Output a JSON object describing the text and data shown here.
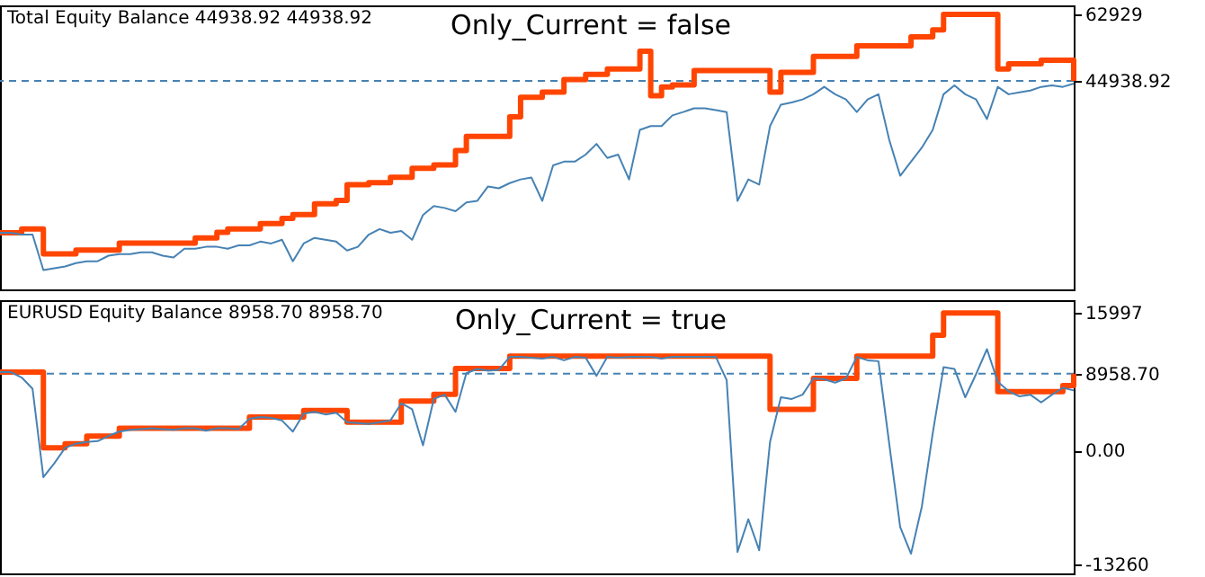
{
  "chart_data": [
    {
      "type": "line",
      "title": "Only_Current = false",
      "annotations": [
        "Total Equity Balance 44938.92 44938.92"
      ],
      "categories": [
        null,
        null,
        null,
        null,
        null,
        null,
        null,
        null,
        null,
        null,
        null,
        null,
        null,
        null,
        null,
        null,
        null,
        null,
        null,
        null,
        null,
        null,
        null,
        null,
        null,
        null,
        null,
        null,
        null,
        null,
        null,
        null,
        null,
        null,
        null,
        null,
        null,
        null,
        null,
        null,
        null,
        null,
        null,
        null,
        null,
        null,
        null,
        null,
        null,
        null,
        null,
        null,
        null,
        null,
        null,
        null,
        null,
        null,
        null,
        null,
        null,
        null,
        null,
        null,
        null,
        null,
        null,
        null,
        null,
        null,
        null,
        null,
        null,
        null,
        null,
        null,
        null,
        null,
        null,
        null,
        null,
        null,
        null,
        null,
        null,
        null,
        null,
        null,
        null,
        null,
        null,
        null,
        null,
        null,
        null,
        null,
        null,
        null,
        null,
        null
      ],
      "series": [
        {
          "type": "step",
          "color": "#ff4500",
          "values": [
            3900,
            3900,
            4900,
            4900,
            -1800,
            -1800,
            -1800,
            -800,
            -800,
            -800,
            -800,
            1100,
            1100,
            1100,
            1100,
            1100,
            1100,
            1100,
            2500,
            2500,
            4000,
            4900,
            4900,
            4900,
            6400,
            6400,
            7800,
            8800,
            8800,
            11700,
            11700,
            12600,
            16900,
            16900,
            17400,
            17400,
            18900,
            18900,
            21300,
            21300,
            22200,
            22200,
            26100,
            29900,
            29900,
            29900,
            29900,
            35200,
            40500,
            40500,
            41900,
            41900,
            45300,
            45300,
            46700,
            46700,
            48100,
            48100,
            48100,
            52900,
            40900,
            43300,
            43800,
            43800,
            47700,
            47700,
            47700,
            47700,
            47700,
            47700,
            47700,
            41900,
            47200,
            47200,
            47200,
            51500,
            51500,
            51500,
            51500,
            54400,
            54400,
            54400,
            54400,
            54400,
            56800,
            56800,
            58700,
            62900,
            62900,
            62900,
            62900,
            62900,
            48100,
            49500,
            49500,
            49500,
            50500,
            50500,
            50500,
            44938.92
          ]
        },
        {
          "type": "line",
          "color": "#4682b4",
          "values": [
            3900,
            3900,
            3400,
            3400,
            -6200,
            -5700,
            -5200,
            -4300,
            -3800,
            -3800,
            -2300,
            -1900,
            -1900,
            -1400,
            -1400,
            -2300,
            -2800,
            -400,
            -400,
            100,
            100,
            -400,
            500,
            500,
            1500,
            1000,
            2000,
            -3800,
            1000,
            2500,
            2000,
            1500,
            -900,
            100,
            3400,
            4900,
            3900,
            4400,
            2000,
            8700,
            11100,
            10600,
            9700,
            12100,
            12500,
            16400,
            15900,
            17300,
            18300,
            18800,
            12500,
            22100,
            23100,
            23100,
            25000,
            27900,
            24100,
            25000,
            18300,
            31700,
            32700,
            32700,
            35600,
            36500,
            37500,
            37500,
            37000,
            36500,
            12500,
            18300,
            16900,
            32700,
            38500,
            39100,
            39900,
            41300,
            43300,
            41300,
            39900,
            36500,
            39900,
            41300,
            28900,
            19300,
            23100,
            26900,
            31700,
            41300,
            43700,
            41300,
            39900,
            34600,
            43300,
            41300,
            41800,
            42300,
            43300,
            43700,
            43300,
            44200
          ]
        }
      ],
      "ylim": [
        -11400,
        65300
      ],
      "yticks": [
        62929,
        {
          "value": 44938.92,
          "label": "44938.92"
        }
      ],
      "tick_labels": "y",
      "ref_lines": [
        {
          "axis": "y",
          "value": 44938.92,
          "color": "#4682b4",
          "line_style": "dashed"
        }
      ]
    },
    {
      "type": "line",
      "title": "Only_Current = true",
      "annotations": [
        "EURUSD Equity Balance 8958.70 8958.70"
      ],
      "categories": [
        null,
        null,
        null,
        null,
        null,
        null,
        null,
        null,
        null,
        null,
        null,
        null,
        null,
        null,
        null,
        null,
        null,
        null,
        null,
        null,
        null,
        null,
        null,
        null,
        null,
        null,
        null,
        null,
        null,
        null,
        null,
        null,
        null,
        null,
        null,
        null,
        null,
        null,
        null,
        null,
        null,
        null,
        null,
        null,
        null,
        null,
        null,
        null,
        null,
        null,
        null,
        null,
        null,
        null,
        null,
        null,
        null,
        null,
        null,
        null,
        null,
        null,
        null,
        null,
        null,
        null,
        null,
        null,
        null,
        null,
        null,
        null,
        null,
        null,
        null,
        null,
        null,
        null,
        null,
        null,
        null,
        null,
        null,
        null,
        null,
        null,
        null,
        null,
        null,
        null,
        null,
        null,
        null,
        null,
        null,
        null,
        null,
        null,
        null,
        null
      ],
      "series": [
        {
          "type": "step",
          "color": "#ff4500",
          "values": [
            9130,
            9130,
            9130,
            9130,
            320,
            320,
            800,
            800,
            1690,
            1690,
            1690,
            2600,
            2600,
            2600,
            2600,
            2600,
            2600,
            2600,
            2600,
            2600,
            2600,
            2600,
            2600,
            3900,
            3900,
            3900,
            3900,
            3900,
            4660,
            4660,
            4660,
            4660,
            3310,
            3310,
            3310,
            3310,
            3310,
            5760,
            5760,
            5760,
            6530,
            6530,
            9550,
            9550,
            9550,
            9550,
            9550,
            10990,
            10990,
            10990,
            10990,
            10990,
            10990,
            10990,
            10990,
            10990,
            10990,
            10990,
            10990,
            10990,
            10990,
            10990,
            10990,
            10990,
            10990,
            10990,
            10990,
            10990,
            10990,
            10990,
            10990,
            4790,
            4790,
            4790,
            4790,
            8390,
            8390,
            8390,
            8390,
            10990,
            10990,
            10990,
            10990,
            10990,
            10990,
            10990,
            13410,
            15997,
            15997,
            15997,
            15997,
            15997,
            6860,
            6860,
            6860,
            6860,
            6860,
            6860,
            7550,
            8958.7
          ]
        },
        {
          "type": "line",
          "color": "#4682b4",
          "values": [
            9130,
            9130,
            8500,
            7200,
            -3100,
            -1500,
            300,
            800,
            1000,
            1100,
            1700,
            2200,
            2400,
            2500,
            2600,
            2500,
            2400,
            2600,
            2600,
            2300,
            2600,
            2600,
            2500,
            3700,
            3900,
            3800,
            3500,
            2200,
            4300,
            4500,
            4200,
            4400,
            3300,
            3200,
            3100,
            3300,
            3500,
            5500,
            4800,
            600,
            6000,
            6500,
            4500,
            9000,
            9500,
            9300,
            9400,
            10900,
            10900,
            10800,
            10700,
            10900,
            10500,
            10900,
            10800,
            8700,
            10900,
            10800,
            10900,
            10900,
            10900,
            10700,
            10900,
            10900,
            10900,
            10900,
            10900,
            8200,
            -11800,
            -8000,
            -11600,
            1000,
            6200,
            6000,
            6500,
            8400,
            8300,
            7900,
            8400,
            10900,
            10500,
            10400,
            700,
            -8900,
            -12000,
            -6500,
            2000,
            9700,
            9500,
            6200,
            8900,
            11800,
            8000,
            6900,
            6300,
            6500,
            5600,
            6500,
            7300,
            7000
          ]
        }
      ],
      "ylim": [
        -14300,
        17500
      ],
      "yticks": [
        15997,
        {
          "value": 8958.7,
          "label": "8958.70"
        },
        {
          "value": 0,
          "label": "0.00"
        },
        -13260
      ],
      "tick_labels": "y",
      "ref_lines": [
        {
          "axis": "y",
          "value": 8958.7,
          "color": "#4682b4",
          "line_style": "dashed"
        }
      ]
    }
  ]
}
